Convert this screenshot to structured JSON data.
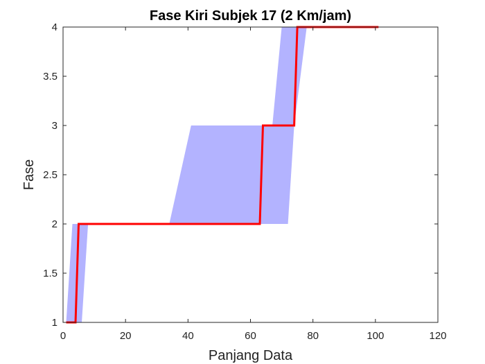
{
  "chart_data": {
    "type": "line",
    "title": "Fase Kiri Subjek 17 (2 Km/jam)",
    "xlabel": "Panjang Data",
    "ylabel": "Fase",
    "xlim": [
      0,
      120
    ],
    "ylim": [
      1,
      4
    ],
    "x_ticks": [
      0,
      20,
      40,
      60,
      80,
      100,
      120
    ],
    "y_ticks": [
      1,
      1.5,
      2,
      2.5,
      3,
      3.5,
      4
    ],
    "grid": false,
    "band": {
      "color": "#b3b3ff",
      "upper": [
        [
          1,
          1
        ],
        [
          3,
          2
        ],
        [
          34,
          2
        ],
        [
          41,
          3
        ],
        [
          67,
          3
        ],
        [
          70,
          4
        ],
        [
          100,
          4
        ]
      ],
      "lower": [
        [
          100,
          4
        ],
        [
          78,
          4
        ],
        [
          74,
          3
        ],
        [
          72,
          2
        ],
        [
          8,
          2
        ],
        [
          6,
          1
        ],
        [
          1,
          1
        ]
      ]
    },
    "series": [
      {
        "color": "#ff0000",
        "x": [
          1,
          4,
          5,
          63,
          64,
          74,
          75,
          101
        ],
        "y": [
          1,
          1,
          2,
          2,
          3,
          3,
          4,
          4
        ]
      }
    ]
  }
}
